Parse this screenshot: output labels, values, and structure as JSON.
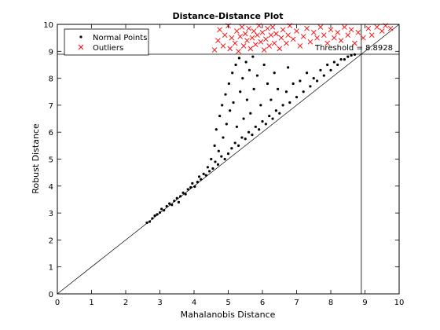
{
  "chart_data": {
    "type": "scatter",
    "title": "Distance-Distance Plot",
    "xlabel": "Mahalanobis Distance",
    "ylabel": "Robust Distance",
    "xlim": [
      0,
      10
    ],
    "ylim": [
      0,
      10
    ],
    "xticks": [
      "0",
      "1",
      "2",
      "3",
      "4",
      "5",
      "6",
      "7",
      "8",
      "9",
      "10"
    ],
    "yticks": [
      "0",
      "1",
      "2",
      "3",
      "4",
      "5",
      "6",
      "7",
      "8",
      "9",
      "10"
    ],
    "grid": false,
    "legend_position": "top-left",
    "series": [
      {
        "name": "Normal Points",
        "marker": "dot",
        "color": "#000000",
        "points": [
          [
            2.62,
            2.64
          ],
          [
            2.7,
            2.68
          ],
          [
            2.78,
            2.8
          ],
          [
            2.85,
            2.9
          ],
          [
            2.92,
            2.95
          ],
          [
            3.0,
            3.02
          ],
          [
            3.05,
            3.15
          ],
          [
            3.12,
            3.1
          ],
          [
            3.2,
            3.25
          ],
          [
            3.28,
            3.35
          ],
          [
            3.35,
            3.3
          ],
          [
            3.42,
            3.45
          ],
          [
            3.5,
            3.55
          ],
          [
            3.55,
            3.4
          ],
          [
            3.6,
            3.62
          ],
          [
            3.68,
            3.75
          ],
          [
            3.75,
            3.7
          ],
          [
            3.82,
            3.88
          ],
          [
            3.9,
            3.95
          ],
          [
            3.95,
            4.1
          ],
          [
            4.02,
            3.98
          ],
          [
            4.1,
            4.15
          ],
          [
            4.15,
            4.35
          ],
          [
            4.2,
            4.25
          ],
          [
            4.28,
            4.45
          ],
          [
            4.35,
            4.4
          ],
          [
            4.4,
            4.7
          ],
          [
            4.45,
            4.55
          ],
          [
            4.5,
            5.0
          ],
          [
            4.55,
            4.65
          ],
          [
            4.6,
            5.5
          ],
          [
            4.62,
            4.9
          ],
          [
            4.65,
            6.1
          ],
          [
            4.7,
            4.8
          ],
          [
            4.72,
            5.3
          ],
          [
            4.75,
            6.6
          ],
          [
            4.8,
            5.1
          ],
          [
            4.82,
            7.0
          ],
          [
            4.85,
            5.8
          ],
          [
            4.9,
            5.0
          ],
          [
            4.92,
            7.4
          ],
          [
            4.95,
            6.3
          ],
          [
            5.0,
            5.2
          ],
          [
            5.02,
            7.8
          ],
          [
            5.05,
            6.8
          ],
          [
            5.1,
            5.4
          ],
          [
            5.12,
            8.2
          ],
          [
            5.15,
            7.1
          ],
          [
            5.2,
            5.6
          ],
          [
            5.22,
            8.5
          ],
          [
            5.25,
            6.2
          ],
          [
            5.3,
            5.5
          ],
          [
            5.32,
            8.75
          ],
          [
            5.35,
            7.5
          ],
          [
            5.4,
            5.8
          ],
          [
            5.42,
            8.0
          ],
          [
            5.45,
            6.5
          ],
          [
            5.5,
            5.75
          ],
          [
            5.52,
            8.6
          ],
          [
            5.55,
            7.2
          ],
          [
            5.6,
            6.0
          ],
          [
            5.62,
            8.3
          ],
          [
            5.65,
            6.7
          ],
          [
            5.7,
            5.9
          ],
          [
            5.72,
            8.8
          ],
          [
            5.75,
            7.6
          ],
          [
            5.8,
            6.2
          ],
          [
            5.85,
            8.1
          ],
          [
            5.9,
            6.1
          ],
          [
            5.95,
            7.0
          ],
          [
            6.0,
            6.4
          ],
          [
            6.05,
            8.5
          ],
          [
            6.1,
            6.3
          ],
          [
            6.15,
            7.8
          ],
          [
            6.2,
            6.6
          ],
          [
            6.25,
            7.2
          ],
          [
            6.3,
            6.5
          ],
          [
            6.35,
            8.2
          ],
          [
            6.4,
            6.8
          ],
          [
            6.45,
            7.6
          ],
          [
            6.5,
            6.7
          ],
          [
            6.6,
            7.0
          ],
          [
            6.7,
            7.5
          ],
          [
            6.75,
            8.4
          ],
          [
            6.8,
            7.1
          ],
          [
            6.9,
            7.8
          ],
          [
            7.0,
            7.3
          ],
          [
            7.1,
            7.9
          ],
          [
            7.2,
            7.5
          ],
          [
            7.3,
            8.2
          ],
          [
            7.4,
            7.7
          ],
          [
            7.5,
            8.0
          ],
          [
            7.6,
            7.9
          ],
          [
            7.7,
            8.3
          ],
          [
            7.8,
            8.1
          ],
          [
            7.9,
            8.5
          ],
          [
            8.0,
            8.3
          ],
          [
            8.1,
            8.6
          ],
          [
            8.2,
            8.5
          ],
          [
            8.3,
            8.7
          ],
          [
            8.4,
            8.7
          ],
          [
            8.5,
            8.8
          ],
          [
            8.6,
            8.85
          ],
          [
            8.7,
            8.88
          ]
        ]
      },
      {
        "name": "Outliers",
        "marker": "x",
        "color": "#ff0000",
        "points": [
          [
            4.6,
            9.05
          ],
          [
            4.7,
            9.4
          ],
          [
            4.75,
            9.8
          ],
          [
            4.85,
            9.2
          ],
          [
            4.9,
            9.6
          ],
          [
            5.0,
            9.95
          ],
          [
            5.05,
            9.1
          ],
          [
            5.1,
            9.5
          ],
          [
            5.2,
            9.3
          ],
          [
            5.25,
            9.75
          ],
          [
            5.3,
            9.0
          ],
          [
            5.35,
            9.55
          ],
          [
            5.4,
            9.9
          ],
          [
            5.45,
            9.2
          ],
          [
            5.5,
            9.65
          ],
          [
            5.55,
            9.4
          ],
          [
            5.6,
            9.85
          ],
          [
            5.65,
            9.1
          ],
          [
            5.7,
            9.5
          ],
          [
            5.75,
            9.75
          ],
          [
            5.8,
            9.25
          ],
          [
            5.85,
            9.6
          ],
          [
            5.9,
            9.95
          ],
          [
            5.95,
            9.35
          ],
          [
            6.0,
            9.7
          ],
          [
            6.05,
            9.05
          ],
          [
            6.1,
            9.45
          ],
          [
            6.15,
            9.85
          ],
          [
            6.2,
            9.2
          ],
          [
            6.25,
            9.6
          ],
          [
            6.3,
            9.9
          ],
          [
            6.35,
            9.3
          ],
          [
            6.4,
            9.65
          ],
          [
            6.5,
            9.1
          ],
          [
            6.55,
            9.5
          ],
          [
            6.6,
            9.8
          ],
          [
            6.7,
            9.3
          ],
          [
            6.75,
            9.6
          ],
          [
            6.8,
            9.95
          ],
          [
            6.9,
            9.45
          ],
          [
            7.0,
            9.75
          ],
          [
            7.1,
            9.2
          ],
          [
            7.2,
            9.55
          ],
          [
            7.3,
            9.85
          ],
          [
            7.4,
            9.35
          ],
          [
            7.5,
            9.7
          ],
          [
            7.6,
            9.5
          ],
          [
            7.7,
            9.9
          ],
          [
            7.8,
            9.6
          ],
          [
            7.9,
            9.3
          ],
          [
            8.0,
            9.8
          ],
          [
            8.1,
            9.5
          ],
          [
            8.2,
            9.7
          ],
          [
            8.3,
            9.4
          ],
          [
            8.4,
            9.9
          ],
          [
            8.5,
            9.6
          ],
          [
            8.6,
            9.8
          ],
          [
            8.7,
            9.3
          ],
          [
            8.8,
            9.7
          ],
          [
            8.95,
            9.5
          ],
          [
            9.1,
            9.85
          ],
          [
            9.2,
            9.6
          ],
          [
            9.35,
            9.9
          ],
          [
            9.5,
            9.75
          ],
          [
            9.6,
            9.95
          ],
          [
            9.75,
            9.85
          ]
        ]
      }
    ],
    "reference_lines": {
      "diagonal": [
        [
          0,
          0
        ],
        [
          10,
          10
        ]
      ],
      "threshold_value": 8.8928,
      "annotation": "Threshold = 8.8928"
    },
    "legend": {
      "normal_label": "Normal Points",
      "outlier_label": "Outliers"
    }
  }
}
